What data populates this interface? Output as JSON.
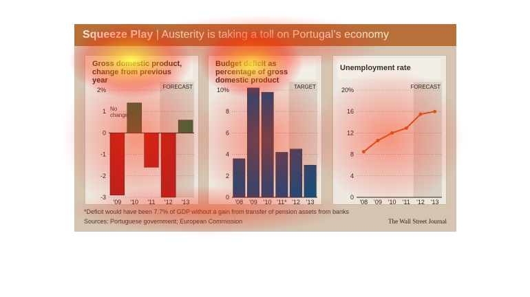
{
  "title": {
    "bold": "Squeeze Play",
    "separator": " | ",
    "rest": "Austerity is taking a toll on Portugal’s economy"
  },
  "colors": {
    "gdp_neg": "#b8231f",
    "gdp_pos": "#3d6b3f",
    "deficit": "#1b4d78",
    "unemployment": "#d3601c",
    "forecast_shade": "#d9d1c4"
  },
  "footnote": "*Deficit would have been 7.7% of GDP without a gain from transfer of pension assets from banks",
  "sources": "Sources: Portuguese government; European Commission",
  "credit": "The Wall Street Journal",
  "chart_data": [
    {
      "type": "bar",
      "title": "Gross domestic product, change from previous year",
      "categories": [
        "'09",
        "'10",
        "'11",
        "'12",
        "'13"
      ],
      "values": [
        -2.9,
        1.4,
        -1.6,
        -3.0,
        0.6
      ],
      "yticks": [
        "2%",
        "1",
        "0",
        "-1",
        "-2",
        "-3"
      ],
      "ylim": [
        -3,
        2
      ],
      "annotation": "No change",
      "forecast_label": "FORECAST",
      "forecast_from": "'12"
    },
    {
      "type": "bar",
      "title": "Budget deficit as percentage of gross domestic product",
      "categories": [
        "'08",
        "'09",
        "'10",
        "'11*",
        "'12",
        "'13"
      ],
      "values": [
        3.6,
        10.2,
        9.8,
        4.2,
        4.5,
        3.0
      ],
      "yticks": [
        "10%",
        "8",
        "6",
        "4",
        "2",
        "0"
      ],
      "ylim": [
        0,
        10
      ],
      "forecast_label": "TARGET",
      "forecast_from": "'12"
    },
    {
      "type": "line",
      "title": "Unemployment rate",
      "categories": [
        "'08",
        "'09",
        "'10",
        "'11",
        "'12",
        "'13"
      ],
      "values": [
        8.5,
        10.6,
        12.0,
        12.9,
        15.5,
        16.0
      ],
      "yticks": [
        "20%",
        "16",
        "12",
        "8",
        "4",
        "0"
      ],
      "ylim": [
        0,
        20
      ],
      "forecast_label": "FORECAST",
      "forecast_from": "'12"
    }
  ]
}
